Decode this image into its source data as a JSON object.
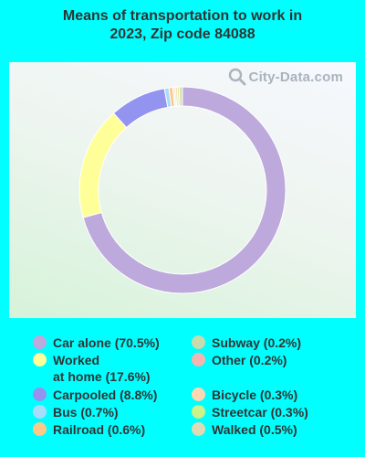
{
  "title": {
    "line1": "Means of transportation to work in",
    "line2": "2023, Zip code 84088"
  },
  "watermark": {
    "text": "City-Data.com",
    "icon": "magnifier-icon"
  },
  "colors": {
    "background": "#00ffff",
    "ring_stroke": "#ffffff"
  },
  "chart_data": {
    "type": "pie",
    "donut": true,
    "title": "Means of transportation to work in 2023, Zip code 84088",
    "slices": [
      {
        "label": "Car alone (70.5%)",
        "value": 70.5,
        "color": "#bda9dc"
      },
      {
        "label": "Worked\nat home (17.6%)",
        "value": 17.6,
        "color": "#ffff99"
      },
      {
        "label": "Carpooled (8.8%)",
        "value": 8.8,
        "color": "#9393f0"
      },
      {
        "label": "Bus (0.7%)",
        "value": 0.7,
        "color": "#a9dcfa"
      },
      {
        "label": "Railroad (0.6%)",
        "value": 0.6,
        "color": "#fcc98a"
      },
      {
        "label": "Subway (0.2%)",
        "value": 0.2,
        "color": "#c6dbae"
      },
      {
        "label": "Other (0.2%)",
        "value": 0.2,
        "color": "#f3b5b1"
      },
      {
        "label": "Bicycle (0.3%)",
        "value": 0.3,
        "color": "#fbd7b3"
      },
      {
        "label": "Streetcar (0.3%)",
        "value": 0.3,
        "color": "#ccf28a"
      },
      {
        "label": "Walked (0.5%)",
        "value": 0.5,
        "color": "#dddbb5"
      }
    ],
    "legend_position": "bottom"
  }
}
